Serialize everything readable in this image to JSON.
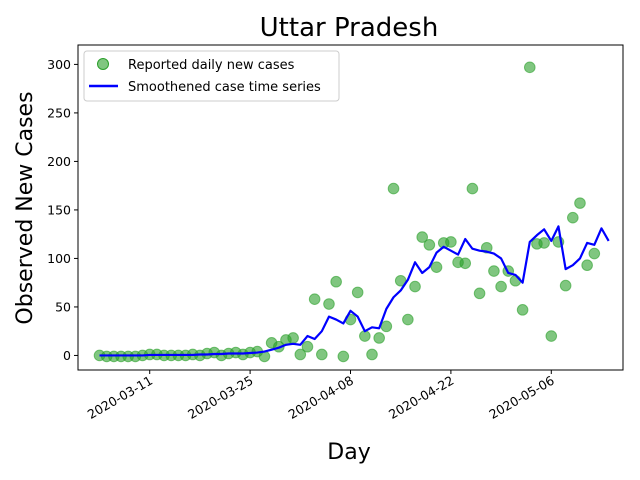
{
  "chart_data": {
    "type": "scatter",
    "title": "Uttar Pradesh",
    "xlabel": "Day",
    "ylabel": "Observed New Cases",
    "x_start": "2020-03-04",
    "xlim": [
      "2020-03-01",
      "2020-05-16"
    ],
    "ylim": [
      -15,
      320
    ],
    "x_ticks": [
      {
        "date": "2020-03-11",
        "label": "2020-03-11"
      },
      {
        "date": "2020-03-25",
        "label": "2020-03-25"
      },
      {
        "date": "2020-04-08",
        "label": "2020-04-08"
      },
      {
        "date": "2020-04-22",
        "label": "2020-04-22"
      },
      {
        "date": "2020-05-06",
        "label": "2020-05-06"
      }
    ],
    "y_ticks": [
      0,
      50,
      100,
      150,
      200,
      250,
      300
    ],
    "legend": {
      "placement": "top-left",
      "entries": [
        "Reported daily new cases",
        "Smoothened case time series"
      ]
    },
    "series": [
      {
        "name": "Reported daily new cases",
        "kind": "scatter",
        "color": "#2ca02c",
        "points": [
          {
            "x": "2020-03-04",
            "y": 0
          },
          {
            "x": "2020-03-05",
            "y": -1
          },
          {
            "x": "2020-03-06",
            "y": -1
          },
          {
            "x": "2020-03-07",
            "y": -1
          },
          {
            "x": "2020-03-08",
            "y": -1
          },
          {
            "x": "2020-03-09",
            "y": -1
          },
          {
            "x": "2020-03-10",
            "y": 0
          },
          {
            "x": "2020-03-11",
            "y": 1
          },
          {
            "x": "2020-03-12",
            "y": 1
          },
          {
            "x": "2020-03-13",
            "y": 0
          },
          {
            "x": "2020-03-14",
            "y": 0
          },
          {
            "x": "2020-03-15",
            "y": 0
          },
          {
            "x": "2020-03-16",
            "y": 0
          },
          {
            "x": "2020-03-17",
            "y": 1
          },
          {
            "x": "2020-03-18",
            "y": 0
          },
          {
            "x": "2020-03-19",
            "y": 2
          },
          {
            "x": "2020-03-20",
            "y": 3
          },
          {
            "x": "2020-03-21",
            "y": 0
          },
          {
            "x": "2020-03-22",
            "y": 2
          },
          {
            "x": "2020-03-23",
            "y": 3
          },
          {
            "x": "2020-03-24",
            "y": 1
          },
          {
            "x": "2020-03-25",
            "y": 3
          },
          {
            "x": "2020-03-26",
            "y": 4
          },
          {
            "x": "2020-03-27",
            "y": -1
          },
          {
            "x": "2020-03-28",
            "y": 13
          },
          {
            "x": "2020-03-29",
            "y": 9
          },
          {
            "x": "2020-03-30",
            "y": 16
          },
          {
            "x": "2020-03-31",
            "y": 18
          },
          {
            "x": "2020-04-01",
            "y": 1
          },
          {
            "x": "2020-04-02",
            "y": 9
          },
          {
            "x": "2020-04-03",
            "y": 58
          },
          {
            "x": "2020-04-04",
            "y": 1
          },
          {
            "x": "2020-04-05",
            "y": 53
          },
          {
            "x": "2020-04-06",
            "y": 76
          },
          {
            "x": "2020-04-07",
            "y": -1
          },
          {
            "x": "2020-04-08",
            "y": 37
          },
          {
            "x": "2020-04-09",
            "y": 65
          },
          {
            "x": "2020-04-10",
            "y": 20
          },
          {
            "x": "2020-04-11",
            "y": 1
          },
          {
            "x": "2020-04-12",
            "y": 18
          },
          {
            "x": "2020-04-13",
            "y": 30
          },
          {
            "x": "2020-04-14",
            "y": 172
          },
          {
            "x": "2020-04-15",
            "y": 77
          },
          {
            "x": "2020-04-16",
            "y": 37
          },
          {
            "x": "2020-04-17",
            "y": 71
          },
          {
            "x": "2020-04-18",
            "y": 122
          },
          {
            "x": "2020-04-19",
            "y": 114
          },
          {
            "x": "2020-04-20",
            "y": 91
          },
          {
            "x": "2020-04-21",
            "y": 116
          },
          {
            "x": "2020-04-22",
            "y": 117
          },
          {
            "x": "2020-04-23",
            "y": 96
          },
          {
            "x": "2020-04-24",
            "y": 95
          },
          {
            "x": "2020-04-25",
            "y": 172
          },
          {
            "x": "2020-04-26",
            "y": 64
          },
          {
            "x": "2020-04-27",
            "y": 111
          },
          {
            "x": "2020-04-28",
            "y": 87
          },
          {
            "x": "2020-04-29",
            "y": 71
          },
          {
            "x": "2020-04-30",
            "y": 87
          },
          {
            "x": "2020-05-01",
            "y": 77
          },
          {
            "x": "2020-05-02",
            "y": 47
          },
          {
            "x": "2020-05-03",
            "y": 297
          },
          {
            "x": "2020-05-04",
            "y": 115
          },
          {
            "x": "2020-05-05",
            "y": 116
          },
          {
            "x": "2020-05-06",
            "y": 20
          },
          {
            "x": "2020-05-07",
            "y": 117
          },
          {
            "x": "2020-05-08",
            "y": 72
          },
          {
            "x": "2020-05-09",
            "y": 142
          },
          {
            "x": "2020-05-10",
            "y": 157
          },
          {
            "x": "2020-05-11",
            "y": 93
          },
          {
            "x": "2020-05-12",
            "y": 105
          }
        ]
      },
      {
        "name": "Smoothened case time series",
        "kind": "line",
        "color": "#0000ff",
        "points": [
          {
            "x": "2020-03-04",
            "y": 0
          },
          {
            "x": "2020-03-05",
            "y": 0
          },
          {
            "x": "2020-03-06",
            "y": 0
          },
          {
            "x": "2020-03-07",
            "y": 0
          },
          {
            "x": "2020-03-08",
            "y": 0
          },
          {
            "x": "2020-03-09",
            "y": 0
          },
          {
            "x": "2020-03-10",
            "y": 0
          },
          {
            "x": "2020-03-11",
            "y": 0.5
          },
          {
            "x": "2020-03-12",
            "y": 0.5
          },
          {
            "x": "2020-03-13",
            "y": 0.5
          },
          {
            "x": "2020-03-14",
            "y": 0.5
          },
          {
            "x": "2020-03-15",
            "y": 0.5
          },
          {
            "x": "2020-03-16",
            "y": 0.5
          },
          {
            "x": "2020-03-17",
            "y": 0.5
          },
          {
            "x": "2020-03-18",
            "y": 1
          },
          {
            "x": "2020-03-19",
            "y": 1
          },
          {
            "x": "2020-03-20",
            "y": 1.5
          },
          {
            "x": "2020-03-21",
            "y": 1.5
          },
          {
            "x": "2020-03-22",
            "y": 2
          },
          {
            "x": "2020-03-23",
            "y": 2
          },
          {
            "x": "2020-03-24",
            "y": 2
          },
          {
            "x": "2020-03-25",
            "y": 2.5
          },
          {
            "x": "2020-03-26",
            "y": 3
          },
          {
            "x": "2020-03-27",
            "y": 4
          },
          {
            "x": "2020-03-28",
            "y": 6
          },
          {
            "x": "2020-03-29",
            "y": 8
          },
          {
            "x": "2020-03-30",
            "y": 11
          },
          {
            "x": "2020-03-31",
            "y": 12
          },
          {
            "x": "2020-04-01",
            "y": 11
          },
          {
            "x": "2020-04-02",
            "y": 20
          },
          {
            "x": "2020-04-03",
            "y": 17
          },
          {
            "x": "2020-04-04",
            "y": 25
          },
          {
            "x": "2020-04-05",
            "y": 40
          },
          {
            "x": "2020-04-06",
            "y": 37
          },
          {
            "x": "2020-04-07",
            "y": 33
          },
          {
            "x": "2020-04-08",
            "y": 46
          },
          {
            "x": "2020-04-09",
            "y": 40
          },
          {
            "x": "2020-04-10",
            "y": 25
          },
          {
            "x": "2020-04-11",
            "y": 29
          },
          {
            "x": "2020-04-12",
            "y": 28
          },
          {
            "x": "2020-04-13",
            "y": 48
          },
          {
            "x": "2020-04-14",
            "y": 60
          },
          {
            "x": "2020-04-15",
            "y": 67
          },
          {
            "x": "2020-04-16",
            "y": 78
          },
          {
            "x": "2020-04-17",
            "y": 96
          },
          {
            "x": "2020-04-18",
            "y": 85
          },
          {
            "x": "2020-04-19",
            "y": 91
          },
          {
            "x": "2020-04-20",
            "y": 106
          },
          {
            "x": "2020-04-21",
            "y": 112
          },
          {
            "x": "2020-04-22",
            "y": 108
          },
          {
            "x": "2020-04-23",
            "y": 104
          },
          {
            "x": "2020-04-24",
            "y": 120
          },
          {
            "x": "2020-04-25",
            "y": 110
          },
          {
            "x": "2020-04-26",
            "y": 108
          },
          {
            "x": "2020-04-27",
            "y": 107
          },
          {
            "x": "2020-04-28",
            "y": 105
          },
          {
            "x": "2020-04-29",
            "y": 100
          },
          {
            "x": "2020-04-30",
            "y": 85
          },
          {
            "x": "2020-05-01",
            "y": 83
          },
          {
            "x": "2020-05-02",
            "y": 75
          },
          {
            "x": "2020-05-03",
            "y": 117
          },
          {
            "x": "2020-05-04",
            "y": 124
          },
          {
            "x": "2020-05-05",
            "y": 130
          },
          {
            "x": "2020-05-06",
            "y": 118
          },
          {
            "x": "2020-05-07",
            "y": 133
          },
          {
            "x": "2020-05-08",
            "y": 89
          },
          {
            "x": "2020-05-09",
            "y": 93
          },
          {
            "x": "2020-05-10",
            "y": 100
          },
          {
            "x": "2020-05-11",
            "y": 116
          },
          {
            "x": "2020-05-12",
            "y": 114
          },
          {
            "x": "2020-05-13",
            "y": 131
          },
          {
            "x": "2020-05-14",
            "y": 118
          }
        ]
      }
    ]
  }
}
